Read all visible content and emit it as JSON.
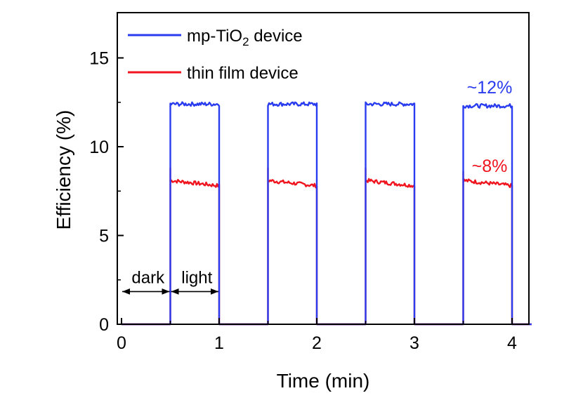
{
  "chart_data": {
    "type": "line",
    "title": "",
    "xlabel": "Time (min)",
    "ylabel": "Efficiency (%)",
    "xlim": [
      -0.03,
      4.2
    ],
    "ylim": [
      0,
      17
    ],
    "x_ticks": [
      "0",
      "1",
      "2",
      "3",
      "4"
    ],
    "y_ticks": [
      "0",
      "5",
      "10",
      "15"
    ],
    "grid": false,
    "legend_position": "top-left",
    "colors": {
      "mp": "#2a3cf0",
      "thin": "#f0141e"
    },
    "series": [
      {
        "name_main": "mp-TiO",
        "name_sub": "2",
        "name_tail": " device",
        "key": "mp",
        "pulses": [
          {
            "on": 0.5,
            "off": 1.0,
            "level": 12.4
          },
          {
            "on": 1.5,
            "off": 2.0,
            "level": 12.4
          },
          {
            "on": 2.5,
            "off": 3.0,
            "level": 12.4
          },
          {
            "on": 3.5,
            "off": 4.0,
            "level": 12.3
          }
        ],
        "dark_level": 0
      },
      {
        "name": "thin film device",
        "key": "thin",
        "pulses": [
          {
            "on": 0.5,
            "off": 1.0,
            "spike": 8.8,
            "level": 8.1,
            "end_level": 7.8
          },
          {
            "on": 1.5,
            "off": 2.0,
            "spike": 8.8,
            "level": 8.1,
            "end_level": 7.8
          },
          {
            "on": 2.5,
            "off": 3.0,
            "spike": 8.8,
            "level": 8.1,
            "end_level": 7.8
          },
          {
            "on": 3.5,
            "off": 4.0,
            "spike": 8.6,
            "level": 8.1,
            "end_level": 7.8
          }
        ],
        "dark_level": 0
      }
    ],
    "annotations": {
      "mp_value": "~12%",
      "thin_value": "~8%",
      "dark": "dark",
      "light": "light"
    },
    "dark_arrow": {
      "from": 0,
      "to": 0.5,
      "y": 2
    },
    "light_arrow": {
      "from": 0.5,
      "to": 1.0,
      "y": 2
    }
  }
}
